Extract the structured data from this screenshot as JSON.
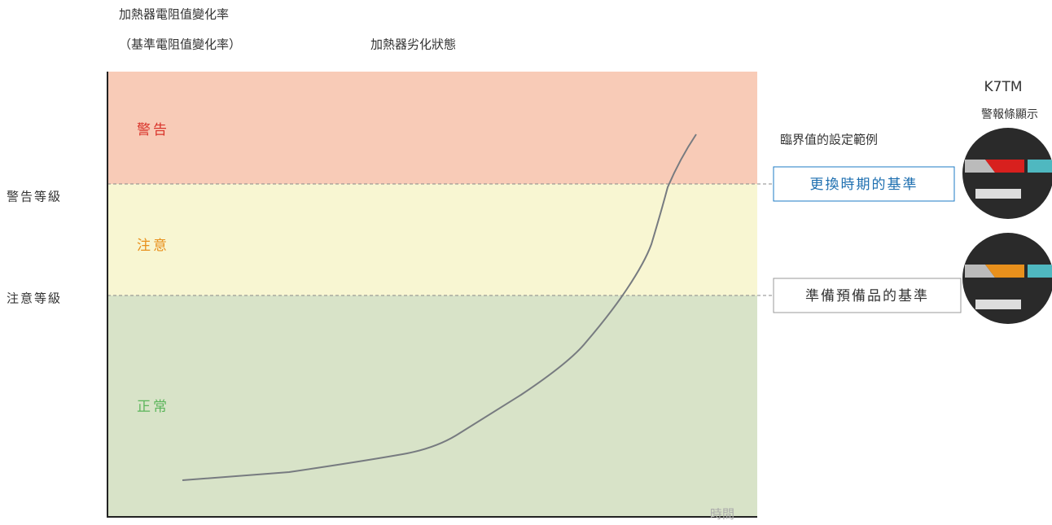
{
  "axis": {
    "y_label": "加熱器電阻值變化率",
    "y_sublabel": "（基準電阻值變化率）",
    "title": "加熱器劣化狀態",
    "x_label": "時間"
  },
  "zones": [
    {
      "label": "警告"
    },
    {
      "label": "注意"
    },
    {
      "label": "正常"
    }
  ],
  "levels": [
    {
      "label": "警告等級"
    },
    {
      "label": "注意等級"
    }
  ],
  "thresholds": {
    "title": "臨界值的設定範例",
    "items": [
      {
        "label": "更換時期的基準"
      },
      {
        "label": "準備預備品的基準"
      }
    ]
  },
  "device": {
    "name": "K7TM",
    "caption": "警報條顯示"
  }
}
